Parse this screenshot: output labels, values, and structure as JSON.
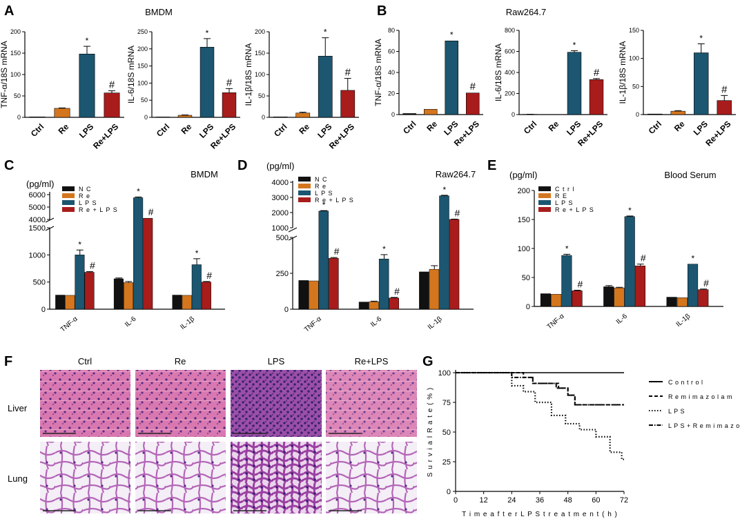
{
  "colors": {
    "Ctrl": "#111111",
    "Re": "#d4761e",
    "LPS": "#1c5670",
    "Re+LPS": "#a81c1c"
  },
  "panel_labels": {
    "A": "A",
    "B": "B",
    "C": "C",
    "D": "D",
    "E": "E",
    "F": "F",
    "G": "G"
  },
  "histology": {
    "columns": [
      "Ctrl",
      "Re",
      "LPS",
      "Re+LPS"
    ],
    "rows": [
      "Liver",
      "Lung"
    ]
  },
  "chart_data": [
    {
      "id": "A1",
      "type": "bar",
      "title": "BMDM",
      "ylabel": "TNF-α/18S mRNA",
      "categories": [
        "Ctrl",
        "Re",
        "LPS",
        "Re+LPS"
      ],
      "values": [
        1,
        21,
        148,
        57
      ],
      "errors": [
        0.5,
        1,
        18,
        5
      ],
      "sig": [
        "",
        "",
        "*",
        "#"
      ],
      "ylim": [
        0,
        200
      ],
      "yticks": [
        0,
        50,
        100,
        150,
        200
      ]
    },
    {
      "id": "A2",
      "type": "bar",
      "title": "",
      "ylabel": "IL-6/18S mRNA",
      "categories": [
        "Ctrl",
        "Re",
        "LPS",
        "Re+LPS"
      ],
      "values": [
        1,
        6,
        205,
        72
      ],
      "errors": [
        0.5,
        1,
        25,
        12
      ],
      "sig": [
        "",
        "",
        "*",
        "#"
      ],
      "ylim": [
        0,
        250
      ],
      "yticks": [
        0,
        50,
        100,
        150,
        200,
        250
      ]
    },
    {
      "id": "A3",
      "type": "bar",
      "title": "",
      "ylabel": "IL-1β/18S mRNA",
      "categories": [
        "Ctrl",
        "Re",
        "LPS",
        "Re+LPS"
      ],
      "values": [
        1,
        10,
        143,
        63
      ],
      "errors": [
        0.5,
        2,
        43,
        28
      ],
      "sig": [
        "",
        "",
        "*",
        "#"
      ],
      "ylim": [
        0,
        200
      ],
      "yticks": [
        0,
        50,
        100,
        150,
        200
      ]
    },
    {
      "id": "B1",
      "type": "bar",
      "title": "Raw264.7",
      "ylabel": "TNF-α/18S mRNA",
      "categories": [
        "Ctrl",
        "Re",
        "LPS",
        "Re+LPS"
      ],
      "values": [
        1,
        5,
        70,
        20.5
      ],
      "errors": [
        0.3,
        0.5,
        0.5,
        0.4
      ],
      "sig": [
        "",
        "",
        "*",
        "#"
      ],
      "ylim": [
        0,
        80
      ],
      "yticks": [
        0,
        20,
        40,
        60,
        80
      ]
    },
    {
      "id": "B2",
      "type": "bar",
      "title": "",
      "ylabel": "IL-6/18S mRNA",
      "categories": [
        "Ctrl",
        "Re",
        "LPS",
        "Re+LPS"
      ],
      "values": [
        2,
        1,
        592,
        332
      ],
      "errors": [
        1,
        0.5,
        15,
        10
      ],
      "sig": [
        "",
        "",
        "*",
        "#"
      ],
      "ylim": [
        0,
        800
      ],
      "yticks": [
        0,
        200,
        400,
        600,
        800
      ]
    },
    {
      "id": "B3",
      "type": "bar",
      "title": "",
      "ylabel": "IL-1β/18S mRNA",
      "categories": [
        "Ctrl",
        "Re",
        "LPS",
        "Re+LPS"
      ],
      "values": [
        1,
        6,
        110,
        25
      ],
      "errors": [
        0.5,
        1,
        16,
        9
      ],
      "sig": [
        "",
        "",
        "*",
        "#"
      ],
      "ylim": [
        0,
        150
      ],
      "yticks": [
        0,
        50,
        100,
        150
      ]
    },
    {
      "id": "C",
      "type": "bar",
      "title": "BMDM",
      "unit": "(pg/ml)",
      "legend": [
        "N C",
        "R e",
        "L P S",
        "R e + L P S"
      ],
      "categories": [
        "TNF-α",
        "IL-6",
        "IL-1β"
      ],
      "series": [
        {
          "name": "NC",
          "values": [
            260,
            560,
            260
          ],
          "errors": [
            0,
            15,
            0
          ]
        },
        {
          "name": "Re",
          "values": [
            255,
            490,
            255
          ],
          "errors": [
            0,
            20,
            0
          ]
        },
        {
          "name": "LPS",
          "values": [
            1000,
            5750,
            820
          ],
          "errors": [
            90,
            60,
            110
          ]
        },
        {
          "name": "Re+LPS",
          "values": [
            680,
            4100,
            500
          ],
          "errors": [
            12,
            0,
            10
          ]
        }
      ],
      "sig": [
        [
          "",
          "",
          "*",
          "#"
        ],
        [
          "",
          "",
          "*",
          "#"
        ],
        [
          "",
          "",
          "*",
          "#"
        ]
      ],
      "ylim": [
        0,
        6000
      ],
      "yticks": [
        0,
        500,
        1000,
        1500,
        4000,
        5000,
        6000
      ],
      "axis_break": [
        1500,
        4000
      ]
    },
    {
      "id": "D",
      "type": "bar",
      "title": "Raw264.7",
      "unit": "(pg/ml)",
      "legend": [
        "N C",
        "R e",
        "L P S",
        "R e + L P S"
      ],
      "categories": [
        "TNF-α",
        "IL-6",
        "IL-1β"
      ],
      "series": [
        {
          "name": "NC",
          "values": [
            200,
            50,
            260
          ],
          "errors": [
            0,
            0,
            0
          ]
        },
        {
          "name": "Re",
          "values": [
            197,
            52,
            278
          ],
          "errors": [
            0,
            4,
            25
          ]
        },
        {
          "name": "LPS",
          "values": [
            2100,
            350,
            3100
          ],
          "errors": [
            30,
            30,
            40
          ]
        },
        {
          "name": "Re+LPS",
          "values": [
            355,
            78,
            1550
          ],
          "errors": [
            5,
            4,
            20
          ]
        }
      ],
      "sig": [
        [
          "",
          "",
          "*",
          "#"
        ],
        [
          "",
          "",
          "*",
          "#"
        ],
        [
          "",
          "",
          "*",
          "#"
        ]
      ],
      "ylim": [
        0,
        4000
      ],
      "yticks": [
        0,
        250,
        500,
        1000,
        2000,
        3000,
        4000
      ],
      "axis_break": [
        500,
        1000
      ]
    },
    {
      "id": "E",
      "type": "bar",
      "title": "Blood Serum",
      "unit": "(pg/ml)",
      "legend": [
        "C t r l",
        "R E",
        "L P S",
        "R e + L P S"
      ],
      "categories": [
        "TNF-α",
        "IL-6",
        "IL-1β"
      ],
      "series": [
        {
          "name": "Ctrl",
          "values": [
            22,
            34,
            16
          ],
          "errors": [
            0,
            2,
            0
          ]
        },
        {
          "name": "RE",
          "values": [
            21,
            32,
            15
          ],
          "errors": [
            0,
            1,
            0
          ]
        },
        {
          "name": "LPS",
          "values": [
            88,
            155,
            73
          ],
          "errors": [
            2,
            1,
            0
          ]
        },
        {
          "name": "Re+LPS",
          "values": [
            27,
            70,
            29
          ],
          "errors": [
            1,
            3,
            1
          ]
        }
      ],
      "sig": [
        [
          "",
          "",
          "*",
          "#"
        ],
        [
          "",
          "",
          "*",
          "#"
        ],
        [
          "",
          "",
          "*",
          "#"
        ]
      ],
      "ylim": [
        0,
        200
      ],
      "yticks": [
        0,
        50,
        100,
        150,
        200
      ]
    },
    {
      "id": "G",
      "type": "line",
      "title": "",
      "xlabel": "T i m e  a f t e r  L P S  t r e a t m e n t ( h )",
      "ylabel": "S u r v i a l  R a t e ( % )",
      "xlim": [
        0,
        72
      ],
      "xticks": [
        0,
        12,
        24,
        36,
        48,
        60,
        72
      ],
      "ylim": [
        0,
        100
      ],
      "yticks": [
        0,
        25,
        50,
        75,
        100
      ],
      "legend": [
        "C o n t r o l",
        "R e m i m  a z o l a m",
        "L P S",
        "L P S + R e m i m  a z o l a m"
      ],
      "series": [
        {
          "name": "Control",
          "style": "solid",
          "points": [
            [
              0,
              100
            ],
            [
              72,
              100
            ]
          ]
        },
        {
          "name": "Remimazolam",
          "style": "dash",
          "points": [
            [
              0,
              100
            ],
            [
              29,
              100
            ],
            [
              29,
              96
            ],
            [
              33,
              96
            ],
            [
              33,
              91
            ],
            [
              44,
              91
            ],
            [
              44,
              87
            ],
            [
              48,
              87
            ],
            [
              48,
              81
            ],
            [
              51,
              81
            ],
            [
              51,
              73
            ],
            [
              72,
              73
            ]
          ]
        },
        {
          "name": "LPS",
          "style": "dot",
          "points": [
            [
              0,
              100
            ],
            [
              24,
              100
            ],
            [
              24,
              89
            ],
            [
              29,
              89
            ],
            [
              29,
              84
            ],
            [
              34,
              84
            ],
            [
              34,
              75
            ],
            [
              41,
              75
            ],
            [
              41,
              64
            ],
            [
              47,
              64
            ],
            [
              47,
              57
            ],
            [
              53,
              57
            ],
            [
              53,
              52
            ],
            [
              60,
              52
            ],
            [
              60,
              46
            ],
            [
              66,
              46
            ],
            [
              66,
              33
            ],
            [
              71,
              33
            ],
            [
              71,
              27
            ],
            [
              72,
              27
            ]
          ]
        },
        {
          "name": "LPS+Remimazolam",
          "style": "dashdot",
          "points": [
            [
              0,
              100
            ],
            [
              24,
              100
            ],
            [
              24,
              96
            ],
            [
              33,
              96
            ],
            [
              33,
              91
            ],
            [
              43,
              91
            ],
            [
              43,
              87
            ],
            [
              48,
              87
            ],
            [
              48,
              81
            ],
            [
              51,
              81
            ],
            [
              51,
              73
            ],
            [
              72,
              73
            ]
          ]
        }
      ]
    }
  ]
}
